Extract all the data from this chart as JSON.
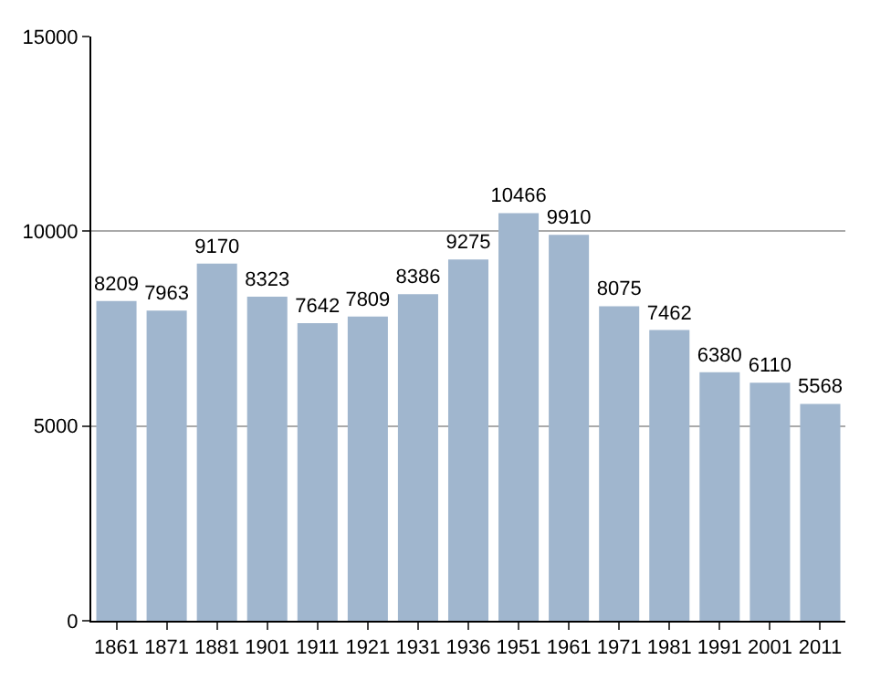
{
  "chart_data": {
    "type": "bar",
    "categories": [
      "1861",
      "1871",
      "1881",
      "1901",
      "1911",
      "1921",
      "1931",
      "1936",
      "1951",
      "1961",
      "1971",
      "1981",
      "1991",
      "2001",
      "2011"
    ],
    "values": [
      8209,
      7963,
      9170,
      8323,
      7642,
      7809,
      8386,
      9275,
      10466,
      9910,
      8075,
      7462,
      6380,
      6110,
      5568
    ],
    "color": "#a0b6ce",
    "ylim": [
      0,
      15000
    ],
    "yticks": [
      0,
      5000,
      10000,
      15000
    ],
    "grid": "y",
    "data_labels": true
  }
}
